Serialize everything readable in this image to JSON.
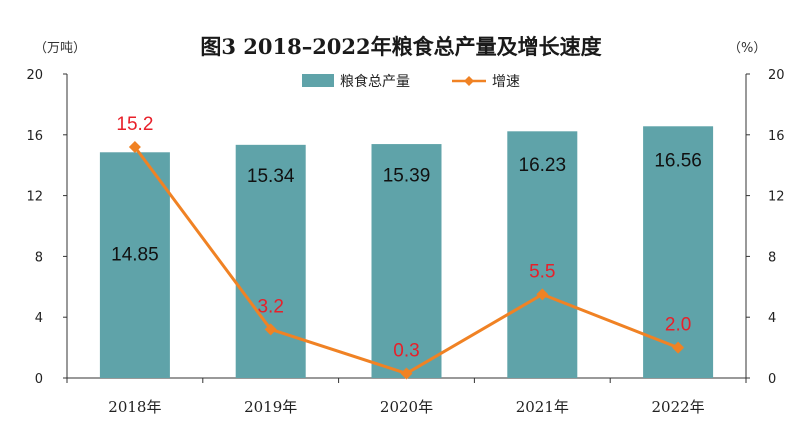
{
  "chart_data": {
    "type": "bar+line",
    "title": "图3  2018–2022年粮食总产量及增长速度",
    "left_unit": "（万吨）",
    "right_unit": "（%）",
    "categories": [
      "2018年",
      "2019年",
      "2020年",
      "2021年",
      "2022年"
    ],
    "series": [
      {
        "name": "粮食总产量",
        "type": "bar",
        "axis": "left",
        "values": [
          14.85,
          15.34,
          15.39,
          16.23,
          16.56
        ],
        "labels": [
          "14.85",
          "15.34",
          "15.39",
          "16.23",
          "16.56"
        ]
      },
      {
        "name": "增速",
        "type": "line",
        "axis": "right",
        "values": [
          15.2,
          3.2,
          0.3,
          5.5,
          2.0
        ],
        "labels": [
          "15.2",
          "3.2",
          "0.3",
          "5.5",
          "2.0"
        ]
      }
    ],
    "ylim_left": [
      0,
      20
    ],
    "ylim_right": [
      0,
      20
    ],
    "yticks_left": [
      "0",
      "4",
      "8",
      "12",
      "16",
      "20"
    ],
    "yticks_right": [
      "0",
      "4",
      "8",
      "12",
      "16",
      "20"
    ],
    "legend_position": "top-center",
    "grid": false,
    "colors": {
      "bar": "#5fa3a9",
      "line": "#f08224",
      "rate_label": "#e8202a"
    }
  }
}
